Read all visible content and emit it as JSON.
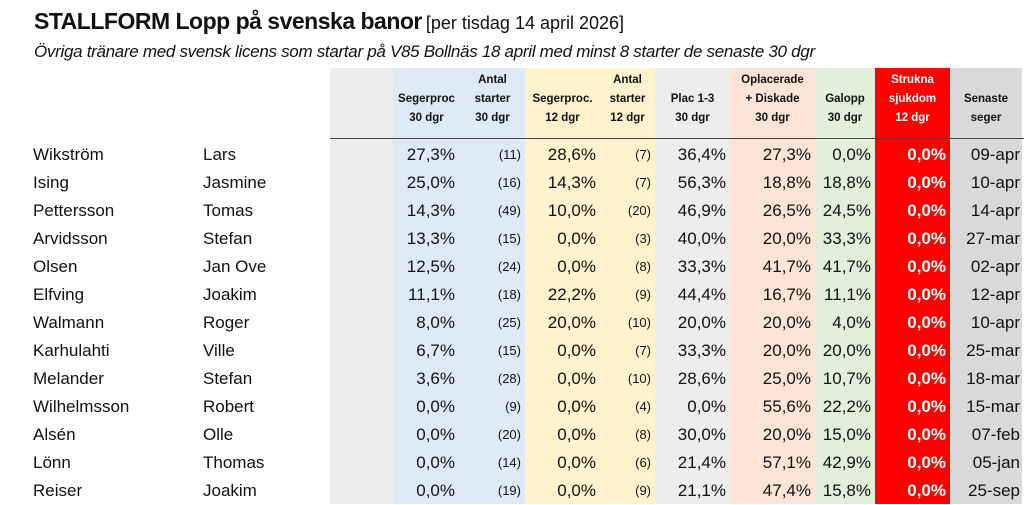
{
  "title": {
    "main": "STALLFORM Lopp på svenska banor",
    "date": "[per tisdag 14 april 2026]"
  },
  "subtitle": "Övriga tränare med svensk licens som startar på V85 Bollnäs 18 april med minst 8 starter de senaste 30 dgr",
  "colors": {
    "blue": "#deebf7",
    "yellow": "#fff2cc",
    "gray": "#ededed",
    "peach": "#fce4d6",
    "green": "#e2efda",
    "red": "#ff0000",
    "darkgray": "#d9d9d9"
  },
  "headers": [
    {
      "l1": "",
      "l2": "Segerproc",
      "l3": "30 dgr"
    },
    {
      "l1": "Antal",
      "l2": "starter",
      "l3": "30 dgr"
    },
    {
      "l1": "",
      "l2": "Segerproc.",
      "l3": "12 dgr"
    },
    {
      "l1": "Antal",
      "l2": "starter",
      "l3": "12 dgr"
    },
    {
      "l1": "",
      "l2": "Plac 1-3",
      "l3": "30 dgr"
    },
    {
      "l1": "Oplacerade",
      "l2": "+ Diskade",
      "l3": "30 dgr"
    },
    {
      "l1": "",
      "l2": "Galopp",
      "l3": "30 dgr"
    },
    {
      "l1": "Strukna",
      "l2": "sjukdom",
      "l3": "12 dgr"
    },
    {
      "l1": "",
      "l2": "Senaste",
      "l3": "seger"
    }
  ],
  "rows": [
    [
      "Wikström",
      "Lars",
      "27,3%",
      "(11)",
      "28,6%",
      "(7)",
      "36,4%",
      "27,3%",
      "0,0%",
      "0,0%",
      "09-apr"
    ],
    [
      "Ising",
      "Jasmine",
      "25,0%",
      "(16)",
      "14,3%",
      "(7)",
      "56,3%",
      "18,8%",
      "18,8%",
      "0,0%",
      "10-apr"
    ],
    [
      "Pettersson",
      "Tomas",
      "14,3%",
      "(49)",
      "10,0%",
      "(20)",
      "46,9%",
      "26,5%",
      "24,5%",
      "0,0%",
      "14-apr"
    ],
    [
      "Arvidsson",
      "Stefan",
      "13,3%",
      "(15)",
      "0,0%",
      "(3)",
      "40,0%",
      "20,0%",
      "33,3%",
      "0,0%",
      "27-mar"
    ],
    [
      "Olsen",
      "Jan Ove",
      "12,5%",
      "(24)",
      "0,0%",
      "(8)",
      "33,3%",
      "41,7%",
      "41,7%",
      "0,0%",
      "02-apr"
    ],
    [
      "Elfving",
      "Joakim",
      "11,1%",
      "(18)",
      "22,2%",
      "(9)",
      "44,4%",
      "16,7%",
      "11,1%",
      "0,0%",
      "12-apr"
    ],
    [
      "Walmann",
      "Roger",
      "8,0%",
      "(25)",
      "20,0%",
      "(10)",
      "20,0%",
      "20,0%",
      "4,0%",
      "0,0%",
      "10-apr"
    ],
    [
      "Karhulahti",
      "Ville",
      "6,7%",
      "(15)",
      "0,0%",
      "(7)",
      "33,3%",
      "20,0%",
      "20,0%",
      "0,0%",
      "25-mar"
    ],
    [
      "Melander",
      "Stefan",
      "3,6%",
      "(28)",
      "0,0%",
      "(10)",
      "28,6%",
      "25,0%",
      "10,7%",
      "0,0%",
      "18-mar"
    ],
    [
      "Wilhelmsson",
      "Robert",
      "0,0%",
      "(9)",
      "0,0%",
      "(4)",
      "0,0%",
      "55,6%",
      "22,2%",
      "0,0%",
      "15-mar"
    ],
    [
      "Alsén",
      "Olle",
      "0,0%",
      "(20)",
      "0,0%",
      "(8)",
      "30,0%",
      "20,0%",
      "15,0%",
      "0,0%",
      "07-feb"
    ],
    [
      "Lönn",
      "Thomas",
      "0,0%",
      "(14)",
      "0,0%",
      "(6)",
      "21,4%",
      "57,1%",
      "42,9%",
      "0,0%",
      "05-jan"
    ],
    [
      "Reiser",
      "Joakim",
      "0,0%",
      "(19)",
      "0,0%",
      "(9)",
      "21,1%",
      "47,4%",
      "15,8%",
      "0,0%",
      "25-sep"
    ]
  ]
}
